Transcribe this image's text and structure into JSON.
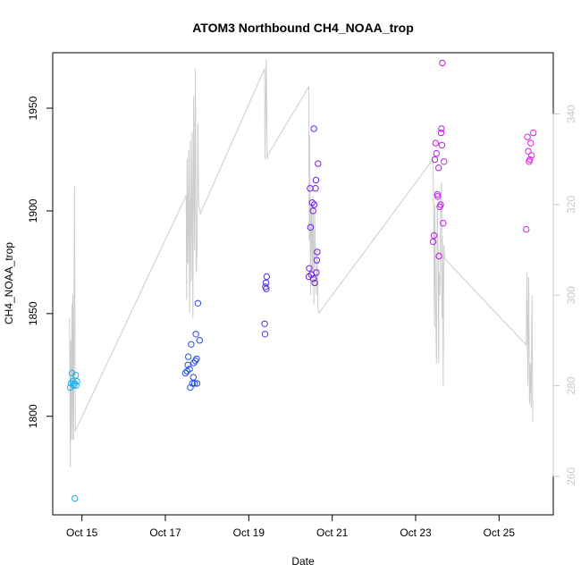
{
  "chart_data": {
    "type": "scatter",
    "title": "ATOM3 Northbound CH4_NOAA_trop",
    "xlabel": "Date",
    "ylabel": "CH4_NOAA_trop",
    "x_unit": "day of October",
    "xlim": [
      14.3,
      26.3
    ],
    "ylim": [
      1752,
      1977
    ],
    "y2lim": [
      251.5,
      353.5
    ],
    "x_ticks": [
      {
        "value": 15,
        "label": "Oct 15"
      },
      {
        "value": 17,
        "label": "Oct 17"
      },
      {
        "value": 19,
        "label": "Oct 19"
      },
      {
        "value": 21,
        "label": "Oct 21"
      },
      {
        "value": 23,
        "label": "Oct 23"
      },
      {
        "value": 25,
        "label": "Oct 25"
      }
    ],
    "y_ticks": [
      {
        "value": 1800,
        "label": "1800"
      },
      {
        "value": 1850,
        "label": "1850"
      },
      {
        "value": 1900,
        "label": "1900"
      },
      {
        "value": 1950,
        "label": "1950"
      }
    ],
    "y2_ticks": [
      {
        "value": 260,
        "label": "260"
      },
      {
        "value": 280,
        "label": "280"
      },
      {
        "value": 300,
        "label": "300"
      },
      {
        "value": 320,
        "label": "320"
      },
      {
        "value": 340,
        "label": "340"
      }
    ],
    "colors": {
      "line": "#cccccc",
      "point_gradient": [
        "#1eb4e6",
        "#2050e8",
        "#6a1ee6",
        "#b41ee6",
        "#e61ee6"
      ],
      "axis": "#000000",
      "right_axis": "#c8c8c8"
    },
    "series": [
      {
        "name": "CH4_NOAA_trop",
        "axis": "left",
        "style": "points",
        "points": [
          [
            14.72,
            1814
          ],
          [
            14.74,
            1816
          ],
          [
            14.76,
            1821
          ],
          [
            14.78,
            1817
          ],
          [
            14.8,
            1815
          ],
          [
            14.82,
            1816
          ],
          [
            14.83,
            1760
          ],
          [
            14.85,
            1820
          ],
          [
            14.86,
            1815
          ],
          [
            14.88,
            1817
          ],
          [
            17.48,
            1821
          ],
          [
            17.52,
            1822
          ],
          [
            17.54,
            1825
          ],
          [
            17.55,
            1829
          ],
          [
            17.58,
            1823
          ],
          [
            17.6,
            1814
          ],
          [
            17.62,
            1835
          ],
          [
            17.65,
            1816
          ],
          [
            17.67,
            1819
          ],
          [
            17.68,
            1826
          ],
          [
            17.7,
            1816
          ],
          [
            17.72,
            1827
          ],
          [
            17.73,
            1840
          ],
          [
            17.75,
            1828
          ],
          [
            17.76,
            1816
          ],
          [
            17.78,
            1855
          ],
          [
            17.82,
            1837
          ],
          [
            19.38,
            1845
          ],
          [
            19.39,
            1840
          ],
          [
            19.4,
            1863
          ],
          [
            19.41,
            1865
          ],
          [
            19.42,
            1862
          ],
          [
            19.43,
            1868
          ],
          [
            20.44,
            1868
          ],
          [
            20.45,
            1872
          ],
          [
            20.47,
            1911
          ],
          [
            20.48,
            1892
          ],
          [
            20.5,
            1869
          ],
          [
            20.52,
            1904
          ],
          [
            20.54,
            1900
          ],
          [
            20.55,
            1867
          ],
          [
            20.56,
            1940
          ],
          [
            20.57,
            1903
          ],
          [
            20.58,
            1865
          ],
          [
            20.6,
            1911
          ],
          [
            20.61,
            1915
          ],
          [
            20.62,
            1870
          ],
          [
            20.63,
            1876
          ],
          [
            20.64,
            1880
          ],
          [
            20.66,
            1923
          ],
          [
            23.42,
            1885
          ],
          [
            23.44,
            1888
          ],
          [
            23.46,
            1925
          ],
          [
            23.48,
            1933
          ],
          [
            23.5,
            1928
          ],
          [
            23.52,
            1908
          ],
          [
            23.53,
            1907
          ],
          [
            23.55,
            1921
          ],
          [
            23.56,
            1878
          ],
          [
            23.58,
            1902
          ],
          [
            23.6,
            1903
          ],
          [
            23.61,
            1938
          ],
          [
            23.62,
            1940
          ],
          [
            23.63,
            1932
          ],
          [
            23.64,
            1972
          ],
          [
            23.66,
            1894
          ],
          [
            23.68,
            1924
          ],
          [
            25.65,
            1891
          ],
          [
            25.68,
            1936
          ],
          [
            25.7,
            1929
          ],
          [
            25.72,
            1924
          ],
          [
            25.74,
            1925
          ],
          [
            25.76,
            1933
          ],
          [
            25.78,
            1927
          ],
          [
            25.82,
            1938
          ]
        ]
      },
      {
        "name": "altitude trace",
        "axis": "right",
        "style": "line",
        "points": [
          [
            14.7,
            295
          ],
          [
            14.71,
            287
          ],
          [
            14.72,
            262
          ],
          [
            14.73,
            290
          ],
          [
            14.74,
            268
          ],
          [
            14.76,
            298
          ],
          [
            14.77,
            268
          ],
          [
            14.78,
            300
          ],
          [
            14.8,
            268
          ],
          [
            14.82,
            324
          ],
          [
            14.84,
            270
          ],
          [
            17.5,
            322
          ],
          [
            17.51,
            299
          ],
          [
            17.52,
            330
          ],
          [
            17.54,
            307
          ],
          [
            17.56,
            332
          ],
          [
            17.58,
            296
          ],
          [
            17.6,
            334
          ],
          [
            17.62,
            303
          ],
          [
            17.64,
            336
          ],
          [
            17.66,
            295
          ],
          [
            17.68,
            344
          ],
          [
            17.7,
            310
          ],
          [
            17.72,
            350
          ],
          [
            17.74,
            305
          ],
          [
            17.76,
            310
          ],
          [
            17.78,
            338
          ],
          [
            17.8,
            320
          ],
          [
            17.84,
            318
          ],
          [
            19.38,
            350
          ],
          [
            19.39,
            330
          ],
          [
            19.4,
            338
          ],
          [
            19.42,
            352
          ],
          [
            19.44,
            330
          ],
          [
            19.46,
            331
          ],
          [
            20.44,
            346
          ],
          [
            20.45,
            312
          ],
          [
            20.46,
            335
          ],
          [
            20.48,
            300
          ],
          [
            20.5,
            320
          ],
          [
            20.52,
            305
          ],
          [
            20.54,
            322
          ],
          [
            20.56,
            298
          ],
          [
            20.58,
            318
          ],
          [
            20.6,
            307
          ],
          [
            20.62,
            300
          ],
          [
            20.64,
            310
          ],
          [
            20.66,
            297
          ],
          [
            20.68,
            296
          ],
          [
            23.42,
            330
          ],
          [
            23.44,
            308
          ],
          [
            23.45,
            293
          ],
          [
            23.46,
            320
          ],
          [
            23.48,
            298
          ],
          [
            23.5,
            285
          ],
          [
            23.52,
            320
          ],
          [
            23.53,
            312
          ],
          [
            23.54,
            310
          ],
          [
            23.55,
            285
          ],
          [
            23.56,
            305
          ],
          [
            23.58,
            300
          ],
          [
            23.6,
            318
          ],
          [
            23.62,
            325
          ],
          [
            23.63,
            295
          ],
          [
            23.64,
            313
          ],
          [
            23.65,
            305
          ],
          [
            23.66,
            280
          ],
          [
            23.68,
            311
          ],
          [
            23.7,
            308
          ],
          [
            25.65,
            289
          ],
          [
            25.67,
            305
          ],
          [
            25.69,
            280
          ],
          [
            25.71,
            304
          ],
          [
            25.73,
            276
          ],
          [
            25.75,
            285
          ],
          [
            25.77,
            275
          ],
          [
            25.79,
            300
          ],
          [
            25.81,
            272
          ]
        ]
      }
    ]
  }
}
